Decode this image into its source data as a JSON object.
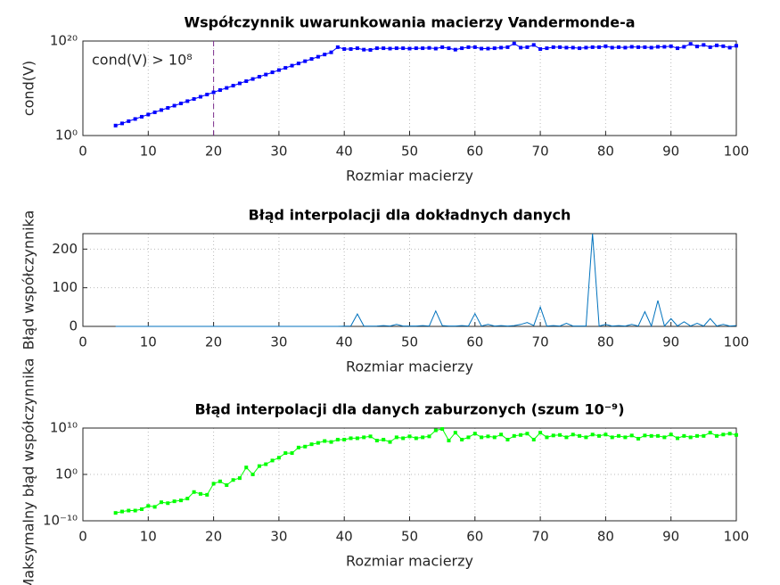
{
  "chart_data": [
    {
      "type": "line",
      "title": "Współczynnik uwarunkowania macierzy Vandermonde-a",
      "x_label": "Rozmiar macierzy",
      "y_label": "cond(V)",
      "yscale": "log",
      "grid": true,
      "marker": "square",
      "xlim": [
        0,
        100
      ],
      "xticks": [
        0,
        10,
        20,
        30,
        40,
        50,
        60,
        70,
        80,
        90,
        100
      ],
      "ylim": [
        1,
        1e+20
      ],
      "yticks": [
        {
          "value": 1,
          "label": "10⁰"
        },
        {
          "value": 1e+20,
          "label": "10²⁰"
        }
      ],
      "annotation": {
        "text": "cond(V) > 10⁸",
        "x": 20,
        "color": "#7e2f8e"
      },
      "x": [
        5,
        6,
        7,
        8,
        9,
        10,
        11,
        12,
        13,
        14,
        15,
        16,
        17,
        18,
        19,
        20,
        21,
        22,
        23,
        24,
        25,
        26,
        27,
        28,
        29,
        30,
        31,
        32,
        33,
        34,
        35,
        36,
        37,
        38,
        39,
        40,
        41,
        42,
        43,
        44,
        45,
        46,
        47,
        48,
        49,
        50,
        51,
        52,
        53,
        54,
        55,
        56,
        57,
        58,
        59,
        60,
        61,
        62,
        63,
        64,
        65,
        66,
        67,
        68,
        69,
        70,
        71,
        72,
        73,
        74,
        75,
        76,
        77,
        78,
        79,
        80,
        81,
        82,
        83,
        84,
        85,
        86,
        87,
        88,
        89,
        90,
        91,
        92,
        93,
        94,
        95,
        96,
        97,
        98,
        99,
        100
      ],
      "series": [
        {
          "color": "#0000ff",
          "values": [
            130.0,
            370.0,
            1100.0,
            3200.0,
            9500.0,
            28000.0,
            83000.0,
            250000.0,
            720000.0,
            2100000.0,
            6300000.0,
            19000000.0,
            55000000.0,
            160000000.0,
            480000000.0,
            1400000000.0,
            4200000000.0,
            12000000000.0,
            36000000000.0,
            110000000000.0,
            320000000000.0,
            930000000000.0,
            2800000000000.0,
            8100000000000.0,
            24000000000000.0,
            71000000000000.0,
            210000000000000.0,
            620000000000000.0,
            1800000000000000.0,
            5400000000000000.0,
            1.6e+16,
            4.7e+16,
            1.4e+17,
            4.1e+17,
            5e+18,
            2e+18,
            2e+18,
            3e+18,
            1.5e+18,
            1.3e+18,
            3e+18,
            3e+18,
            2.5e+18,
            3e+18,
            3e+18,
            2.5e+18,
            3e+18,
            3e+18,
            3.5e+18,
            2.5e+18,
            5e+18,
            3e+18,
            1.5e+18,
            3e+18,
            5e+18,
            5e+18,
            2.5e+18,
            2.5e+18,
            3e+18,
            4e+18,
            5e+18,
            3e+19,
            4e+18,
            5e+18,
            1.5e+19,
            2e+18,
            3e+18,
            5e+18,
            5e+18,
            4e+18,
            4e+18,
            3e+18,
            4e+18,
            5e+18,
            5e+18,
            8e+18,
            4e+18,
            5e+18,
            4e+18,
            6e+18,
            5e+18,
            5e+18,
            4e+18,
            6e+18,
            6e+18,
            8e+18,
            3e+18,
            6e+18,
            2.5e+19,
            7e+18,
            1.5e+19,
            5e+18,
            1.2e+19,
            8e+18,
            4e+18,
            1e+19
          ]
        }
      ]
    },
    {
      "type": "line",
      "title": "Błąd interpolacji dla dokładnych danych",
      "x_label": "Rozmiar macierzy",
      "y_label": "Błąd współczynnika",
      "yscale": "linear",
      "grid": true,
      "marker": "none",
      "xlim": [
        0,
        100
      ],
      "xticks": [
        0,
        10,
        20,
        30,
        40,
        50,
        60,
        70,
        80,
        90,
        100
      ],
      "ylim": [
        0,
        240
      ],
      "yticks": [
        0,
        100,
        200
      ],
      "x": [
        5,
        6,
        7,
        8,
        9,
        10,
        11,
        12,
        13,
        14,
        15,
        16,
        17,
        18,
        19,
        20,
        21,
        22,
        23,
        24,
        25,
        26,
        27,
        28,
        29,
        30,
        31,
        32,
        33,
        34,
        35,
        36,
        37,
        38,
        39,
        40,
        41,
        42,
        43,
        44,
        45,
        46,
        47,
        48,
        49,
        50,
        51,
        52,
        53,
        54,
        55,
        56,
        57,
        58,
        59,
        60,
        61,
        62,
        63,
        64,
        65,
        66,
        67,
        68,
        69,
        70,
        71,
        72,
        73,
        74,
        75,
        76,
        77,
        78,
        79,
        80,
        81,
        82,
        83,
        84,
        85,
        86,
        87,
        88,
        89,
        90,
        91,
        92,
        93,
        94,
        95,
        96,
        97,
        98,
        99,
        100
      ],
      "series": [
        {
          "color": "#0072bd",
          "values": [
            0,
            0,
            0,
            0,
            0,
            0,
            0,
            0,
            0,
            0,
            0,
            0,
            0,
            0,
            0,
            0,
            0,
            0,
            0,
            0,
            0,
            0,
            0,
            0,
            0,
            0,
            0,
            0,
            0,
            0,
            0,
            0,
            0,
            0,
            0,
            0.5,
            1,
            32,
            1,
            0.5,
            1,
            2,
            1,
            5,
            1,
            1,
            1,
            2,
            1,
            40,
            2,
            1,
            1,
            2,
            1,
            33,
            1,
            5,
            1,
            2,
            1,
            2,
            5,
            10,
            2,
            50,
            1,
            2,
            1,
            8,
            1,
            1,
            1,
            240,
            1,
            5,
            1,
            2,
            1,
            5,
            1,
            38,
            1,
            67,
            1,
            20,
            1,
            12,
            1,
            8,
            1,
            20,
            1,
            5,
            1,
            2
          ]
        }
      ]
    },
    {
      "type": "line",
      "title": "Błąd interpolacji dla danych zaburzonych (szum 10⁻⁹)",
      "x_label": "Rozmiar macierzy",
      "y_label": "Maksymalny błąd współczynnika",
      "yscale": "log",
      "grid": true,
      "marker": "square",
      "xlim": [
        0,
        100
      ],
      "xticks": [
        0,
        10,
        20,
        30,
        40,
        50,
        60,
        70,
        80,
        90,
        100
      ],
      "ylim": [
        1e-10,
        10000000000.0
      ],
      "yticks": [
        {
          "value": 1e-10,
          "label": "10⁻¹⁰"
        },
        {
          "value": 1,
          "label": "10⁰"
        },
        {
          "value": 10000000000.0,
          "label": "10¹⁰"
        }
      ],
      "x": [
        5,
        6,
        7,
        8,
        9,
        10,
        11,
        12,
        13,
        14,
        15,
        16,
        17,
        18,
        19,
        20,
        21,
        22,
        23,
        24,
        25,
        26,
        27,
        28,
        29,
        30,
        31,
        32,
        33,
        34,
        35,
        36,
        37,
        38,
        39,
        40,
        41,
        42,
        43,
        44,
        45,
        46,
        47,
        48,
        49,
        50,
        51,
        52,
        53,
        54,
        55,
        56,
        57,
        58,
        59,
        60,
        61,
        62,
        63,
        64,
        65,
        66,
        67,
        68,
        69,
        70,
        71,
        72,
        73,
        74,
        75,
        76,
        77,
        78,
        79,
        80,
        81,
        82,
        83,
        84,
        85,
        86,
        87,
        88,
        89,
        90,
        91,
        92,
        93,
        94,
        95,
        96,
        97,
        98,
        99,
        100
      ],
      "series": [
        {
          "color": "#00ff00",
          "values": [
            5e-09,
            1e-08,
            1.6e-08,
            1.6e-08,
            3.2e-08,
            1.6e-07,
            1e-07,
            1e-06,
            6.3e-07,
            1.6e-06,
            2.5e-06,
            6.3e-06,
            0.00016,
            6.3e-05,
            4e-05,
            0.01,
            0.032,
            0.005,
            0.063,
            0.16,
            32,
            1,
            63,
            160,
            1000,
            4000,
            40000.0,
            40000.0,
            630000.0,
            1000000.0,
            3200000.0,
            6300000.0,
            16000000.0,
            10000000.0,
            32000000.0,
            32000000.0,
            63000000.0,
            63000000.0,
            100000000.0,
            160000000.0,
            20000000.0,
            32000000.0,
            10000000.0,
            100000000.0,
            63000000.0,
            160000000.0,
            63000000.0,
            100000000.0,
            160000000.0,
            3200000000.0,
            6300000000.0,
            20000000.0,
            1000000000.0,
            32000000.0,
            100000000.0,
            630000000.0,
            100000000.0,
            160000000.0,
            100000000.0,
            400000000.0,
            32000000.0,
            200000000.0,
            320000000.0,
            630000000.0,
            32000000.0,
            1000000000.0,
            100000000.0,
            250000000.0,
            320000000.0,
            100000000.0,
            400000000.0,
            200000000.0,
            100000000.0,
            400000000.0,
            200000000.0,
            400000000.0,
            100000000.0,
            200000000.0,
            100000000.0,
            250000000.0,
            50000000.0,
            250000000.0,
            200000000.0,
            200000000.0,
            100000000.0,
            400000000.0,
            63000000.0,
            200000000.0,
            100000000.0,
            200000000.0,
            200000000.0,
            1000000000.0,
            200000000.0,
            400000000.0,
            630000000.0,
            320000000.0
          ]
        }
      ]
    }
  ]
}
